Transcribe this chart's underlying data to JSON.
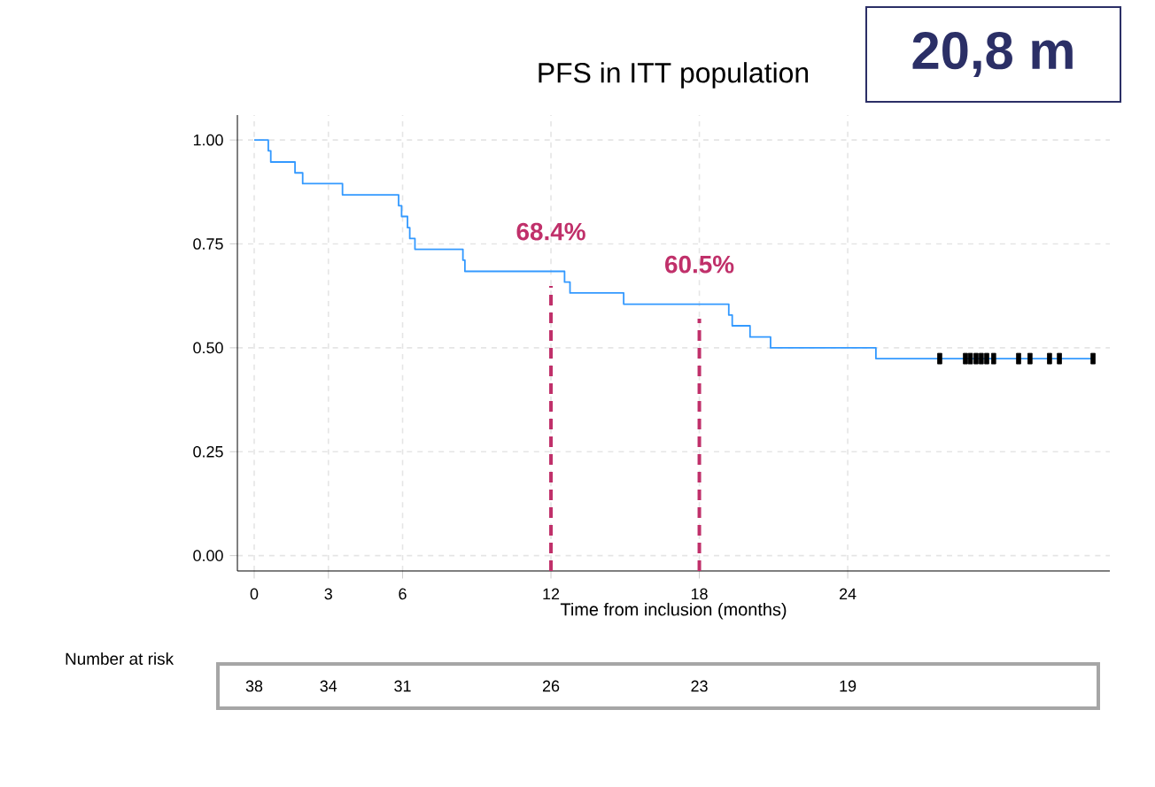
{
  "chart_data": {
    "type": "step",
    "title": "PFS in ITT population",
    "xlabel": "Time from inclusion (months)",
    "series": [
      {
        "color": "#3399ff",
        "marker": "none",
        "x": [
          0,
          0.57,
          0.67,
          1.65,
          1.96,
          3.57,
          5.84,
          5.96,
          6.2,
          6.29,
          6.5,
          8.44,
          8.52,
          12.55,
          12.77,
          14.94,
          19.19,
          19.33,
          20.05,
          20.88,
          25.14,
          33.95
        ],
        "values": [
          1,
          0.974,
          0.947,
          0.921,
          0.895,
          0.868,
          0.842,
          0.816,
          0.789,
          0.763,
          0.737,
          0.711,
          0.684,
          0.658,
          0.632,
          0.605,
          0.579,
          0.553,
          0.526,
          0.5,
          0.474,
          0.474
        ]
      },
      {
        "type": "scatter",
        "color": "#000000",
        "marker": "square",
        "x": [
          27.72,
          28.76,
          28.96,
          29.19,
          29.4,
          29.62,
          29.9,
          30.91,
          31.37,
          32.16,
          32.56,
          33.92
        ],
        "values": [
          0.474,
          0.474,
          0.474,
          0.474,
          0.474,
          0.474,
          0.474,
          0.474,
          0.474,
          0.474,
          0.474,
          0.474
        ]
      }
    ],
    "xlim": [
      -0.68,
      34.6
    ],
    "ylim": [
      -0.037,
      1.06
    ],
    "xticks": [
      0,
      3,
      6,
      12,
      18,
      24
    ],
    "yticks": [
      {
        "value": 0,
        "label": "0.00"
      },
      {
        "value": 0.25,
        "label": "0.25"
      },
      {
        "value": 0.5,
        "label": "0.50"
      },
      {
        "value": 0.75,
        "label": "0.75"
      },
      {
        "value": 1,
        "label": "1.00"
      }
    ],
    "grid": true,
    "ref_lines": [
      {
        "axis": "x",
        "value": 12,
        "color": "#c0306a",
        "line_style": "dashed"
      },
      {
        "axis": "x",
        "value": 18,
        "color": "#c0306a",
        "line_style": "dashed"
      }
    ],
    "annotations": [
      "20,8 m",
      "Number at risk",
      "38",
      "34",
      "31",
      "26",
      "23",
      "19",
      {
        "text": "68.4%",
        "x": 12,
        "y": 0.684
      },
      {
        "text": "60.5%",
        "x": 18,
        "y": 0.605
      }
    ]
  }
}
